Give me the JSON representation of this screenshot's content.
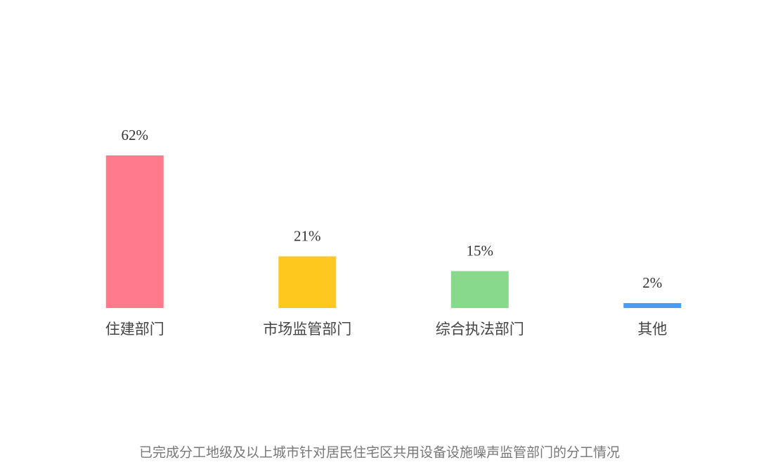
{
  "chart_data": {
    "type": "bar",
    "categories": [
      "住建部门",
      "市场监管部门",
      "综合执法部门",
      "其他"
    ],
    "values": [
      62,
      21,
      15,
      2
    ],
    "value_labels": [
      "62%",
      "21%",
      "15%",
      "2%"
    ],
    "colors": [
      "#ff7a8a",
      "#ffc81f",
      "#88d98c",
      "#4a9cf0"
    ],
    "caption": "已完成分工地级及以上城市针对居民住宅区共用设备设施噪声监管部门的分工情况"
  }
}
